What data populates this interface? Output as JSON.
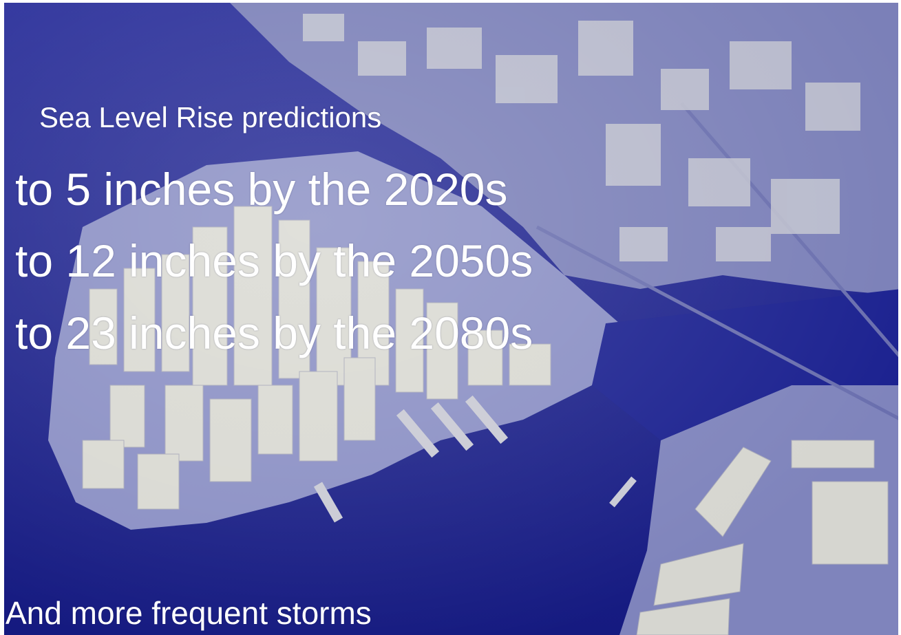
{
  "slide": {
    "subtitle": "Sea Level Rise predictions",
    "lines": [
      "to 5 inches by the 2020s",
      "to 12 inches by the 2050s",
      "to 23 inches by the 2080s"
    ],
    "footer": "And more frequent storms"
  },
  "colors": {
    "water": "#1e2596",
    "land": "#8a8fbf",
    "buildings": "#d9d9d2",
    "text": "#ffffff"
  }
}
